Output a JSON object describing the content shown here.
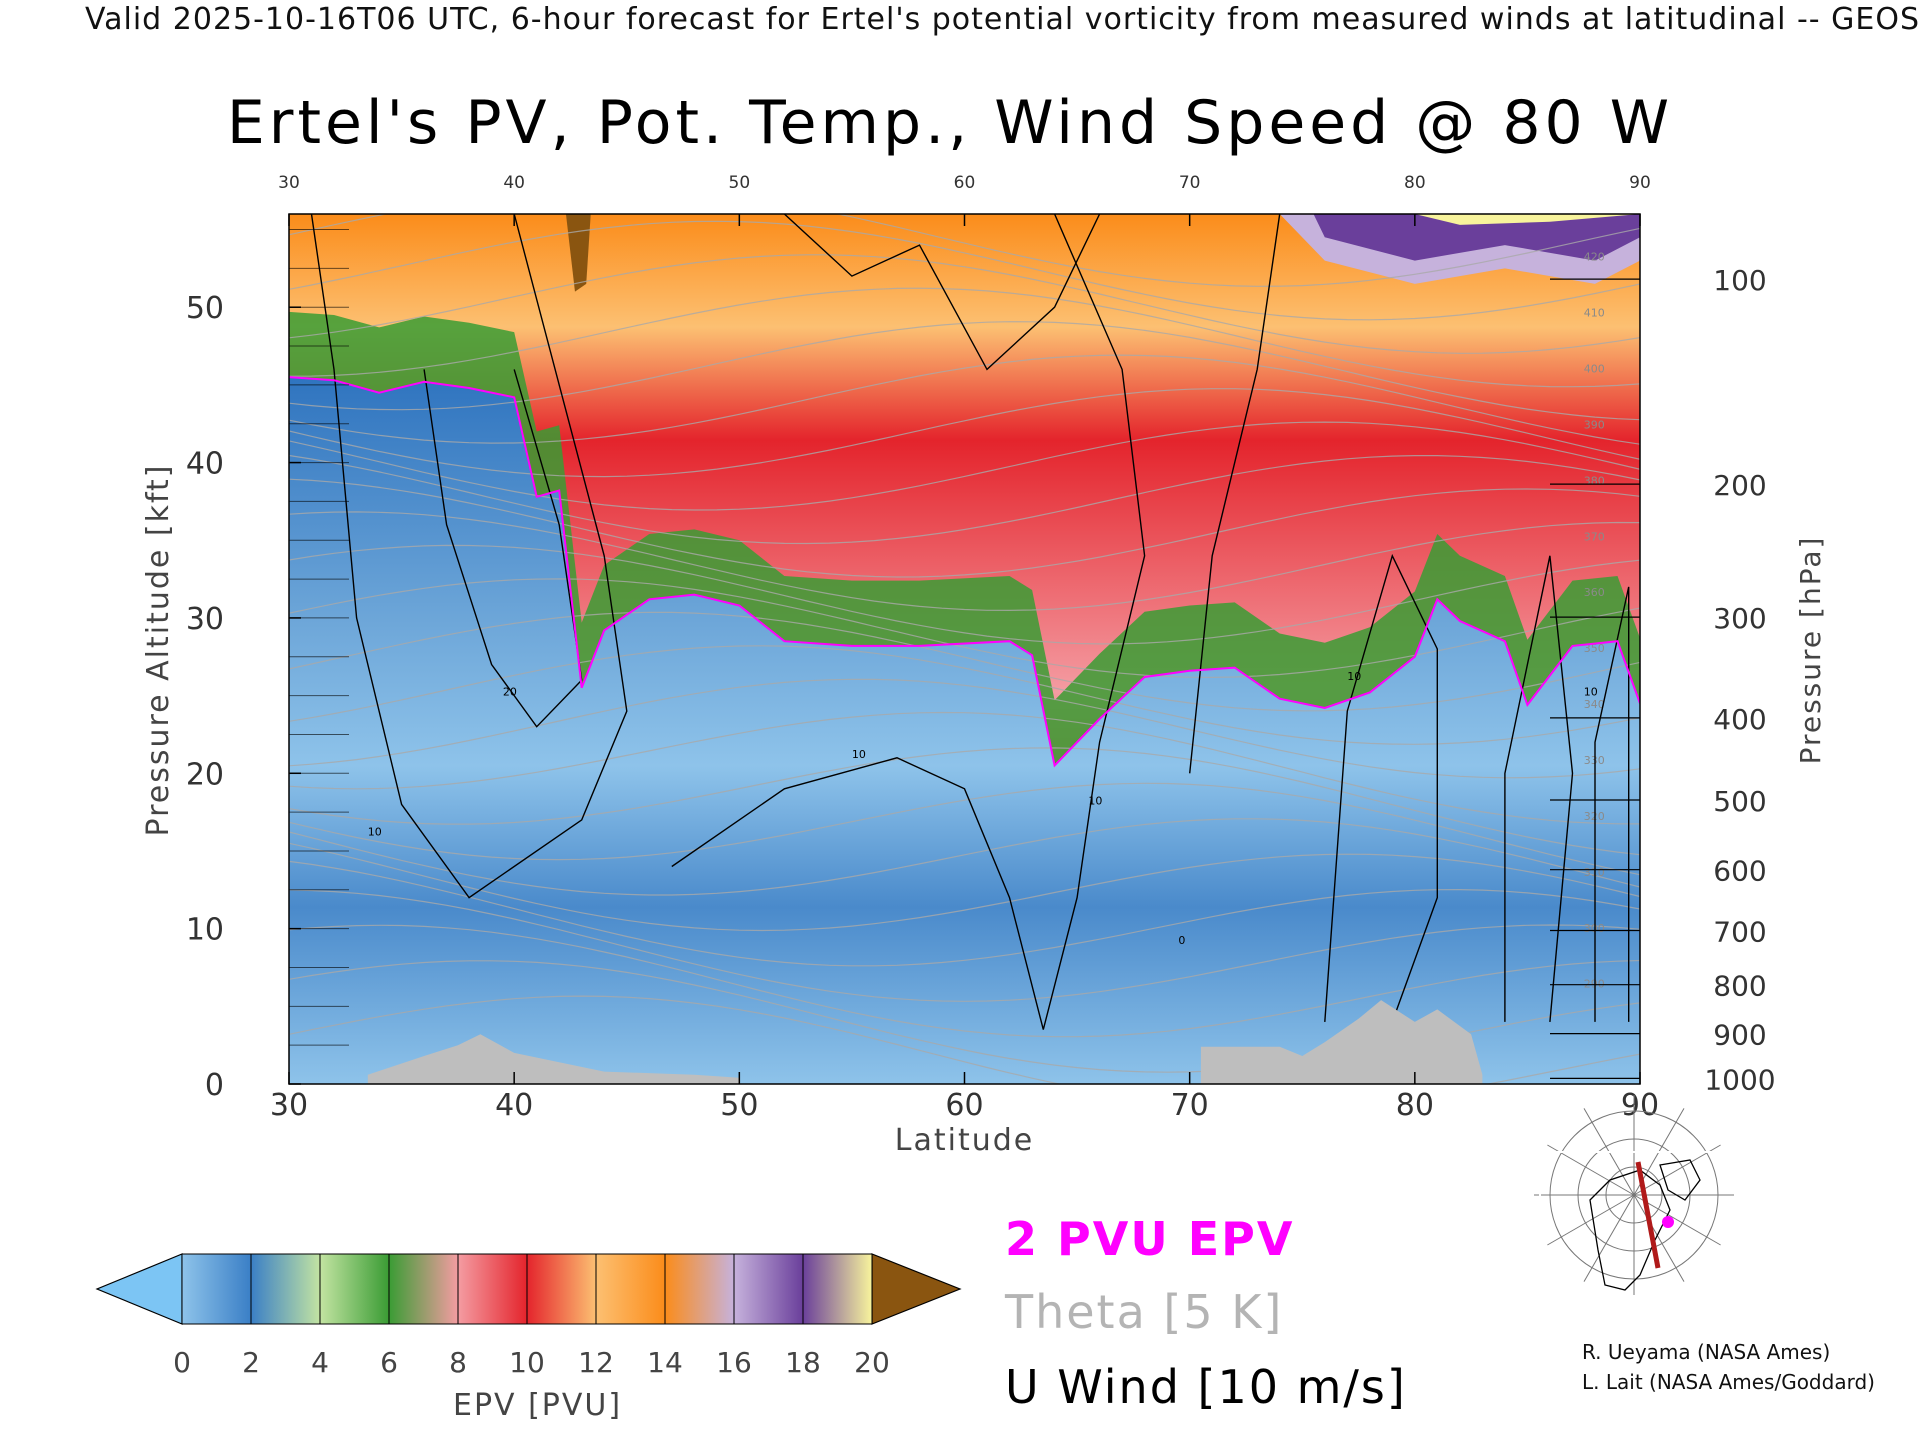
{
  "header": {
    "valid_line": "Valid 2025-10-16T06 UTC, 6-hour forecast for Ertel's potential vorticity from measured winds at latitudinal -- GEOS"
  },
  "chart_data": {
    "type": "heatmap",
    "title": "Ertel's PV, Pot. Temp., Wind Speed @ 80 W",
    "xlabel": "Latitude",
    "ylabel_left": "Pressure Altitude [kft]",
    "ylabel_right": "Pressure [hPa]",
    "xlim": [
      30,
      90
    ],
    "ylim_kft": [
      0,
      56
    ],
    "x_ticks": [
      30,
      40,
      50,
      60,
      70,
      80,
      90
    ],
    "y_ticks_kft": [
      0,
      10,
      20,
      30,
      40,
      50
    ],
    "pressure_ticks_hpa": [
      "100",
      "200",
      "300",
      "400",
      "500",
      "600",
      "700",
      "800",
      "900",
      "1000"
    ],
    "colorbar": {
      "label": "EPV [PVU]",
      "ticks": [
        "0",
        "2",
        "4",
        "6",
        "8",
        "10",
        "12",
        "14",
        "16",
        "18",
        "20"
      ],
      "under_color": "#7cc5f4",
      "over_color": "#8a5510",
      "colors": [
        "#8ec3ea",
        "#3a7fc6",
        "#c3e4a2",
        "#3a9c34",
        "#f49ca2",
        "#e4242c",
        "#fcc072",
        "#fb8c1a",
        "#c6b2dc",
        "#6a3f9b",
        "#f8f49c"
      ]
    },
    "tropopause_2pvu_kft": [
      [
        30,
        45.5
      ],
      [
        32,
        45.3
      ],
      [
        34,
        44.5
      ],
      [
        36,
        45.2
      ],
      [
        38,
        44.8
      ],
      [
        40,
        44.2
      ],
      [
        41,
        37.8
      ],
      [
        42,
        38.2
      ],
      [
        43,
        25.5
      ],
      [
        44,
        29.2
      ],
      [
        46,
        31.2
      ],
      [
        48,
        31.5
      ],
      [
        50,
        30.8
      ],
      [
        52,
        28.5
      ],
      [
        55,
        28.2
      ],
      [
        58,
        28.2
      ],
      [
        62,
        28.5
      ],
      [
        63,
        27.6
      ],
      [
        64,
        20.5
      ],
      [
        66,
        23.5
      ],
      [
        68,
        26.2
      ],
      [
        70,
        26.6
      ],
      [
        72,
        26.8
      ],
      [
        74,
        24.8
      ],
      [
        76,
        24.2
      ],
      [
        78,
        25.2
      ],
      [
        80,
        27.5
      ],
      [
        81,
        31.2
      ],
      [
        82,
        29.8
      ],
      [
        84,
        28.5
      ],
      [
        85,
        24.4
      ],
      [
        87,
        28.2
      ],
      [
        89,
        28.5
      ],
      [
        90,
        24.5
      ]
    ],
    "theta_contour_labels": [
      "420",
      "410",
      "400",
      "390",
      "380",
      "370",
      "360",
      "350",
      "340",
      "330",
      "320",
      "310",
      "300",
      "290"
    ],
    "wind_contour_labels": [
      "10",
      "20",
      "0"
    ],
    "topography_kft": [
      [
        33.5,
        0.6
      ],
      [
        36,
        1.8
      ],
      [
        37.5,
        2.5
      ],
      [
        38.5,
        3.2
      ],
      [
        40,
        2.0
      ],
      [
        42,
        1.4
      ],
      [
        44,
        0.8
      ],
      [
        48,
        0.6
      ],
      [
        50,
        0.4
      ],
      [
        70.5,
        2.4
      ],
      [
        74,
        2.4
      ],
      [
        75,
        1.8
      ],
      [
        76,
        2.7
      ],
      [
        77.5,
        4.2
      ],
      [
        78.5,
        5.4
      ],
      [
        80,
        4.0
      ],
      [
        81,
        4.8
      ],
      [
        82.5,
        3.2
      ],
      [
        83,
        0.6
      ]
    ]
  },
  "legend": {
    "epv_label": "2 PVU EPV",
    "theta_label": "Theta [5 K]",
    "uwind_label": "U Wind [10 m/s]"
  },
  "credits": {
    "line1": "R. Ueyama (NASA Ames)",
    "line2": "L. Lait (NASA Ames/Goddard)"
  },
  "colors": {
    "tropopause": "#ff00ff",
    "theta": "#a9a9a9",
    "wind": "#000000",
    "topography": "#bebebe",
    "track": "#b01a1a"
  }
}
